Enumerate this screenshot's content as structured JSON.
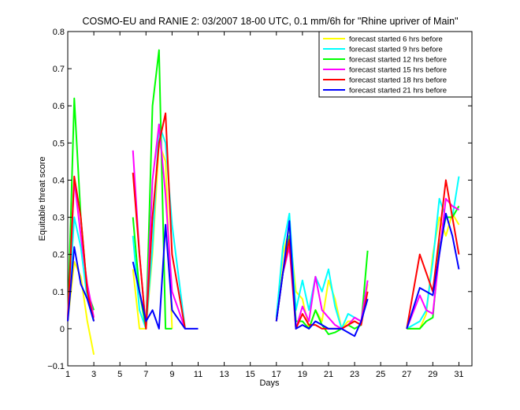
{
  "chart_data": {
    "type": "line",
    "title": "COSMO-EU and RANIE 2: 03/2007 18-00 UTC, 0.1 mm/6h for \"Rhine upriver of Main\"",
    "xlabel": "Days",
    "ylabel": "Equitable threat score",
    "xlim": [
      1,
      32
    ],
    "ylim": [
      -0.1,
      0.8
    ],
    "xticks": [
      1,
      3,
      5,
      7,
      9,
      11,
      13,
      15,
      17,
      19,
      21,
      23,
      25,
      27,
      29,
      31
    ],
    "yticks": [
      -0.1,
      0,
      0.1,
      0.2,
      0.3,
      0.4,
      0.5,
      0.6,
      0.7,
      0.8
    ],
    "ytick_labels": [
      "−0.1",
      "0",
      "0.1",
      "0.2",
      "0.3",
      "0.4",
      "0.5",
      "0.6",
      "0.7",
      "0.8"
    ],
    "legend_position": "top-right",
    "grid": false,
    "series": [
      {
        "name": "forecast started 6 hrs before",
        "color": "#ffff00",
        "segments": [
          [
            [
              1,
              0.02
            ],
            [
              1.5,
              0.18
            ],
            [
              2,
              0.14
            ],
            [
              2.5,
              0.02
            ],
            [
              3,
              -0.07
            ]
          ],
          [
            [
              6,
              0.16
            ],
            [
              6.5,
              0.0
            ],
            [
              7,
              0.0
            ],
            [
              7.5,
              0.2
            ],
            [
              8,
              0.5
            ],
            [
              8.5,
              0.45
            ],
            [
              9,
              0.0
            ]
          ],
          [
            [
              17,
              0.02
            ],
            [
              17.5,
              0.2
            ],
            [
              18,
              0.27
            ],
            [
              18.5,
              0.1
            ],
            [
              19,
              0.08
            ],
            [
              19.5,
              0.0
            ],
            [
              20,
              0.05
            ],
            [
              20.5,
              0.02
            ],
            [
              21,
              0.13
            ],
            [
              21.5,
              0.08
            ],
            [
              22,
              0.0
            ],
            [
              22.5,
              0.02
            ],
            [
              23,
              0.02
            ],
            [
              23.5,
              0.01
            ],
            [
              24,
              0.12
            ]
          ],
          [
            [
              27,
              0.0
            ],
            [
              28,
              0.0
            ],
            [
              28.5,
              0.04
            ],
            [
              29,
              0.2
            ],
            [
              29.5,
              0.3
            ],
            [
              30,
              0.25
            ],
            [
              30.5,
              0.31
            ],
            [
              31,
              0.28
            ]
          ]
        ]
      },
      {
        "name": "forecast started 9 hrs before",
        "color": "#00ffff",
        "segments": [
          [
            [
              1,
              0.03
            ],
            [
              1.5,
              0.3
            ],
            [
              2,
              0.22
            ],
            [
              2.5,
              0.08
            ],
            [
              3,
              0.02
            ]
          ],
          [
            [
              6,
              0.25
            ],
            [
              6.5,
              0.05
            ],
            [
              7,
              0.0
            ],
            [
              7.5,
              0.22
            ],
            [
              8,
              0.55
            ],
            [
              8.5,
              0.5
            ],
            [
              9,
              0.28
            ],
            [
              10,
              0.0
            ]
          ],
          [
            [
              17,
              0.03
            ],
            [
              17.5,
              0.22
            ],
            [
              18,
              0.31
            ],
            [
              18.5,
              0.05
            ],
            [
              19,
              0.13
            ],
            [
              19.5,
              0.05
            ],
            [
              20,
              0.14
            ],
            [
              20.5,
              0.1
            ],
            [
              21,
              0.16
            ],
            [
              21.5,
              0.06
            ],
            [
              22,
              0.0
            ],
            [
              22.5,
              0.04
            ],
            [
              23,
              0.03
            ],
            [
              23.5,
              0.02
            ],
            [
              24,
              0.08
            ]
          ],
          [
            [
              27,
              0.0
            ],
            [
              28,
              0.02
            ],
            [
              28.5,
              0.05
            ],
            [
              29,
              0.18
            ],
            [
              29.5,
              0.35
            ],
            [
              30,
              0.3
            ],
            [
              30.5,
              0.3
            ],
            [
              31,
              0.41
            ]
          ]
        ]
      },
      {
        "name": "forecast started 12 hrs before",
        "color": "#00ff00",
        "segments": [
          [
            [
              1,
              0.02
            ],
            [
              1.5,
              0.62
            ],
            [
              2,
              0.3
            ],
            [
              2.5,
              0.1
            ],
            [
              3,
              0.05
            ]
          ],
          [
            [
              6,
              0.3
            ],
            [
              6.5,
              0.1
            ],
            [
              7,
              0.0
            ],
            [
              7.5,
              0.6
            ],
            [
              8,
              0.75
            ],
            [
              8.5,
              0.0
            ],
            [
              9,
              0.0
            ]
          ],
          [
            [
              17,
              0.02
            ],
            [
              17.5,
              0.15
            ],
            [
              18,
              0.25
            ],
            [
              18.5,
              0.02
            ],
            [
              19,
              0.02
            ],
            [
              19.5,
              0.0
            ],
            [
              20,
              0.05
            ],
            [
              20.5,
              0.01
            ],
            [
              21,
              -0.015
            ],
            [
              21.5,
              -0.01
            ],
            [
              22,
              0.0
            ],
            [
              22.5,
              0.01
            ],
            [
              23,
              0.0
            ],
            [
              23.5,
              0.01
            ],
            [
              24,
              0.21
            ]
          ],
          [
            [
              27,
              0.0
            ],
            [
              28,
              0.0
            ],
            [
              28.5,
              0.02
            ],
            [
              29,
              0.03
            ],
            [
              29.5,
              0.22
            ],
            [
              30,
              0.3
            ],
            [
              30.5,
              0.3
            ],
            [
              31,
              0.33
            ]
          ]
        ]
      },
      {
        "name": "forecast started 15 hrs before",
        "color": "#ff00ff",
        "segments": [
          [
            [
              1,
              0.03
            ],
            [
              1.5,
              0.4
            ],
            [
              2,
              0.25
            ],
            [
              2.5,
              0.12
            ],
            [
              3,
              0.03
            ]
          ],
          [
            [
              6,
              0.48
            ],
            [
              6.5,
              0.2
            ],
            [
              7,
              0.0
            ],
            [
              7.5,
              0.4
            ],
            [
              8,
              0.55
            ],
            [
              8.5,
              0.36
            ],
            [
              9,
              0.1
            ],
            [
              10,
              0.0
            ]
          ],
          [
            [
              17,
              0.02
            ],
            [
              17.5,
              0.15
            ],
            [
              18,
              0.22
            ],
            [
              18.5,
              0.0
            ],
            [
              19,
              0.06
            ],
            [
              19.5,
              0.02
            ],
            [
              20,
              0.14
            ],
            [
              20.5,
              0.05
            ],
            [
              21,
              0.03
            ],
            [
              21.5,
              0.01
            ],
            [
              22,
              0.0
            ],
            [
              22.5,
              0.01
            ],
            [
              23,
              0.03
            ],
            [
              23.5,
              0.02
            ],
            [
              24,
              0.13
            ]
          ],
          [
            [
              27,
              0.0
            ],
            [
              28,
              0.09
            ],
            [
              28.5,
              0.05
            ],
            [
              29,
              0.04
            ],
            [
              29.5,
              0.2
            ],
            [
              30,
              0.35
            ],
            [
              30.5,
              0.33
            ],
            [
              31,
              0.32
            ]
          ]
        ]
      },
      {
        "name": "forecast started 18 hrs before",
        "color": "#ff0000",
        "segments": [
          [
            [
              1,
              0.02
            ],
            [
              1.5,
              0.41
            ],
            [
              2,
              0.3
            ],
            [
              2.5,
              0.1
            ],
            [
              3,
              0.02
            ]
          ],
          [
            [
              6,
              0.42
            ],
            [
              6.5,
              0.2
            ],
            [
              7,
              0.0
            ],
            [
              7.5,
              0.3
            ],
            [
              8,
              0.5
            ],
            [
              8.5,
              0.58
            ],
            [
              9,
              0.2
            ],
            [
              10,
              0.0
            ]
          ],
          [
            [
              17,
              0.02
            ],
            [
              17.5,
              0.15
            ],
            [
              18,
              0.24
            ],
            [
              18.5,
              0.0
            ],
            [
              19,
              0.04
            ],
            [
              19.5,
              0.01
            ],
            [
              20,
              0.01
            ],
            [
              20.5,
              0.0
            ],
            [
              21,
              0.0
            ],
            [
              21.5,
              0.0
            ],
            [
              22,
              0.0
            ],
            [
              22.5,
              0.01
            ],
            [
              23,
              0.02
            ],
            [
              23.5,
              0.01
            ],
            [
              24,
              0.1
            ]
          ],
          [
            [
              27,
              0.0
            ],
            [
              28,
              0.2
            ],
            [
              28.5,
              0.15
            ],
            [
              29,
              0.1
            ],
            [
              29.5,
              0.25
            ],
            [
              30,
              0.4
            ],
            [
              30.5,
              0.3
            ],
            [
              31,
              0.2
            ]
          ]
        ]
      },
      {
        "name": "forecast started 21 hrs before",
        "color": "#0000ff",
        "segments": [
          [
            [
              1,
              0.02
            ],
            [
              1.5,
              0.22
            ],
            [
              2,
              0.12
            ],
            [
              2.5,
              0.08
            ],
            [
              3,
              0.02
            ]
          ],
          [
            [
              6,
              0.18
            ],
            [
              6.5,
              0.1
            ],
            [
              7,
              0.02
            ],
            [
              7.5,
              0.05
            ],
            [
              8,
              0.0
            ],
            [
              8.5,
              0.28
            ],
            [
              9,
              0.05
            ],
            [
              10,
              0.0
            ],
            [
              11,
              0.0
            ]
          ],
          [
            [
              17,
              0.02
            ],
            [
              17.5,
              0.15
            ],
            [
              18,
              0.29
            ],
            [
              18.5,
              0.0
            ],
            [
              19,
              0.01
            ],
            [
              19.5,
              0.0
            ],
            [
              20,
              0.02
            ],
            [
              20.5,
              0.01
            ],
            [
              21,
              0.0
            ],
            [
              21.5,
              0.0
            ],
            [
              22,
              0.0
            ],
            [
              22.5,
              -0.01
            ],
            [
              23,
              -0.02
            ],
            [
              23.5,
              0.02
            ],
            [
              24,
              0.08
            ]
          ],
          [
            [
              27,
              0.0
            ],
            [
              28,
              0.11
            ],
            [
              28.5,
              0.1
            ],
            [
              29,
              0.09
            ],
            [
              29.5,
              0.2
            ],
            [
              30,
              0.31
            ],
            [
              30.5,
              0.25
            ],
            [
              31,
              0.16
            ]
          ]
        ]
      }
    ]
  }
}
